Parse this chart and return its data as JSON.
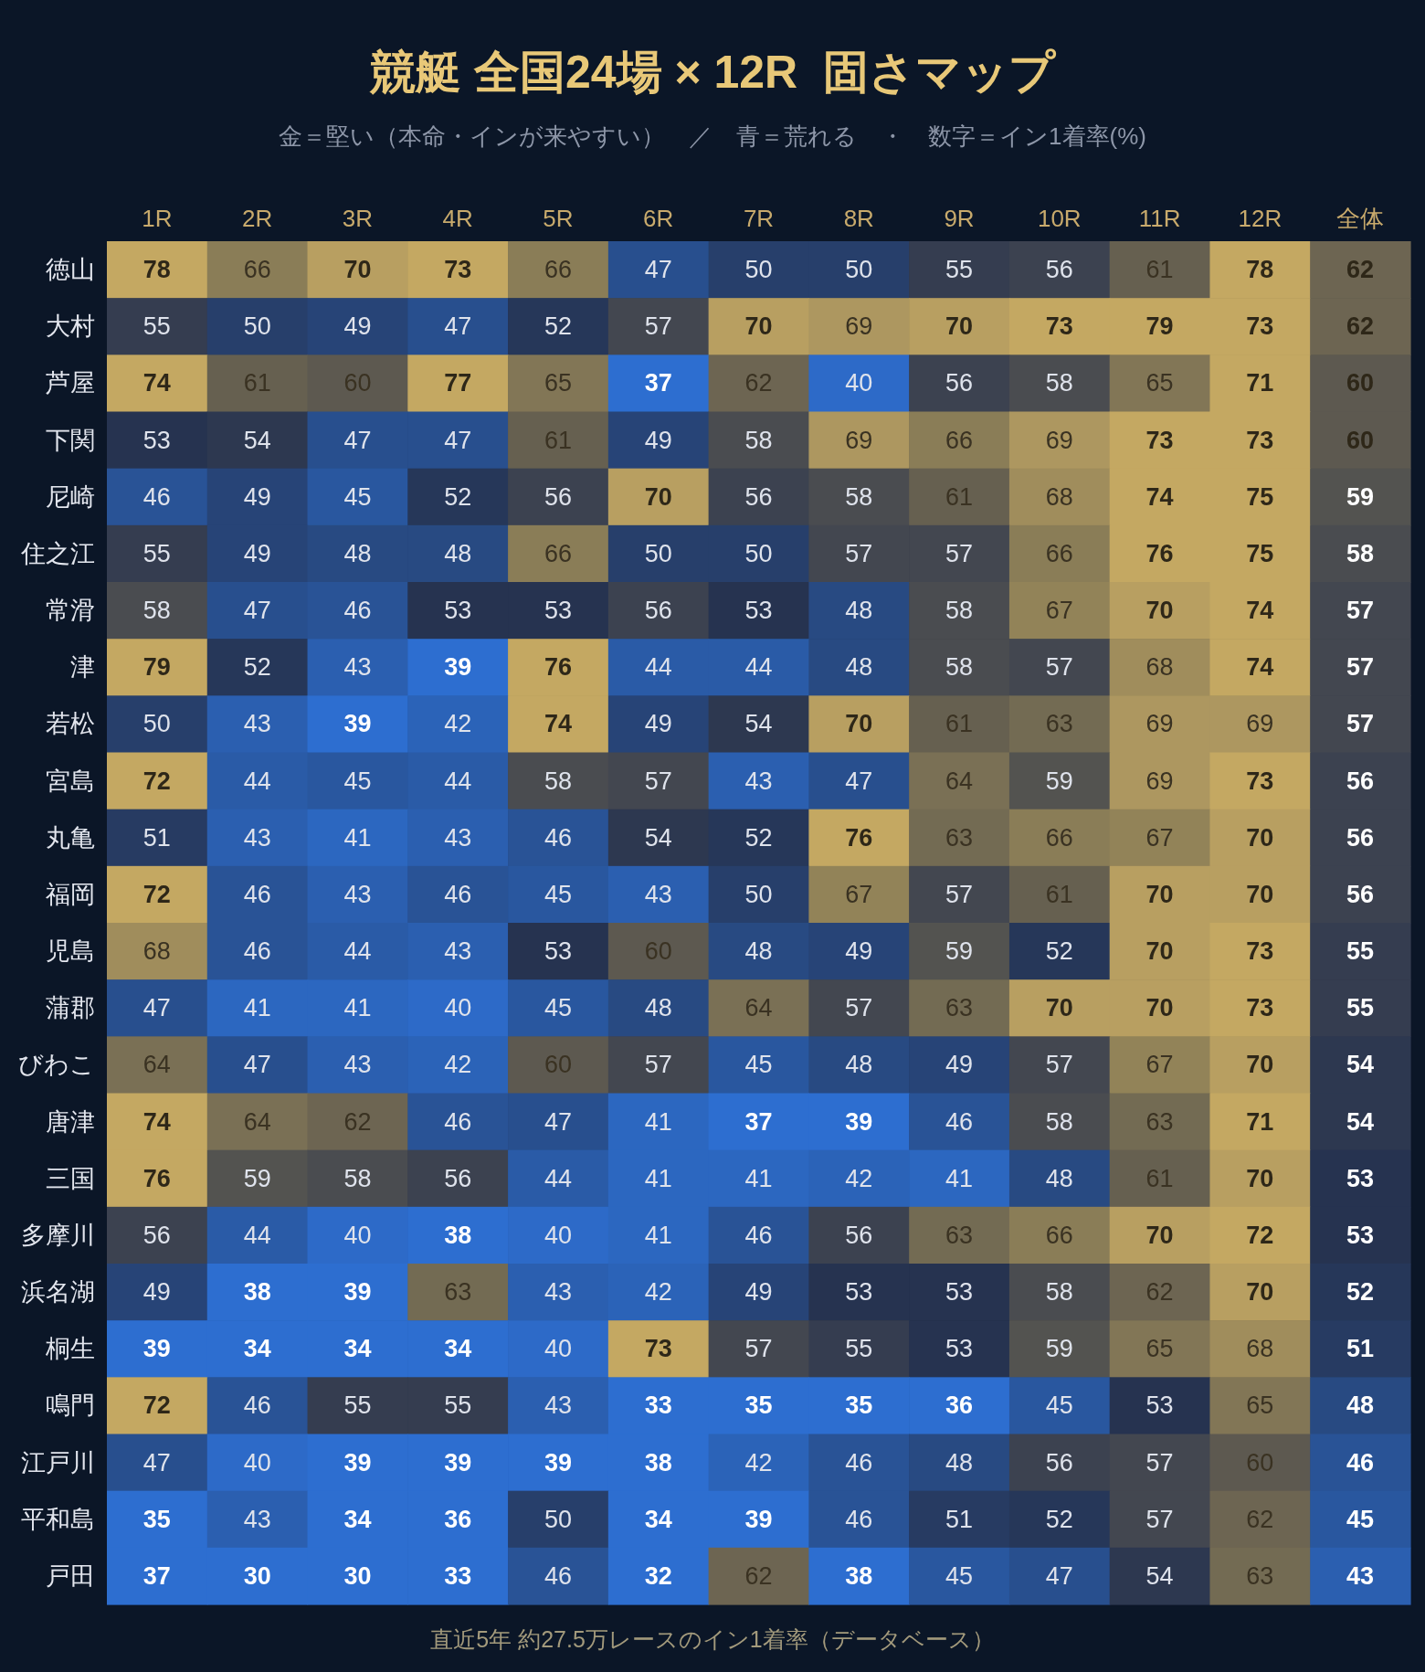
{
  "chart_data": {
    "type": "heatmap",
    "title": "競艇 全国24場 × 12R  固さマップ",
    "subtitle": "金＝堅い（本命・インが来やすい）　／　青＝荒れる　・　数字＝イン1着率(%)",
    "categories": [
      "1R",
      "2R",
      "3R",
      "4R",
      "5R",
      "6R",
      "7R",
      "8R",
      "9R",
      "10R",
      "11R",
      "12R",
      "全体"
    ],
    "y_categories": [
      "徳山",
      "大村",
      "芦屋",
      "下関",
      "尼崎",
      "住之江",
      "常滑",
      "津",
      "若松",
      "宮島",
      "丸亀",
      "福岡",
      "児島",
      "蒲郡",
      "びわこ",
      "唐津",
      "三国",
      "多摩川",
      "浜名湖",
      "桐生",
      "鳴門",
      "江戸川",
      "平和島",
      "戸田"
    ],
    "cells": [
      [
        78,
        66,
        70,
        73,
        66,
        47,
        50,
        50,
        55,
        56,
        61,
        78,
        62
      ],
      [
        55,
        50,
        49,
        47,
        52,
        57,
        70,
        69,
        70,
        73,
        79,
        73,
        62
      ],
      [
        74,
        61,
        60,
        77,
        65,
        37,
        62,
        40,
        56,
        58,
        65,
        71,
        60
      ],
      [
        53,
        54,
        47,
        47,
        61,
        49,
        58,
        69,
        66,
        69,
        73,
        73,
        60
      ],
      [
        46,
        49,
        45,
        52,
        56,
        70,
        56,
        58,
        61,
        68,
        74,
        75,
        59
      ],
      [
        55,
        49,
        48,
        48,
        66,
        50,
        50,
        57,
        57,
        66,
        76,
        75,
        58
      ],
      [
        58,
        47,
        46,
        53,
        53,
        56,
        53,
        48,
        58,
        67,
        70,
        74,
        57
      ],
      [
        79,
        52,
        43,
        39,
        76,
        44,
        44,
        48,
        58,
        57,
        68,
        74,
        57
      ],
      [
        50,
        43,
        39,
        42,
        74,
        49,
        54,
        70,
        61,
        63,
        69,
        69,
        57
      ],
      [
        72,
        44,
        45,
        44,
        58,
        57,
        43,
        47,
        64,
        59,
        69,
        73,
        56
      ],
      [
        51,
        43,
        41,
        43,
        46,
        54,
        52,
        76,
        63,
        66,
        67,
        70,
        56
      ],
      [
        72,
        46,
        43,
        46,
        45,
        43,
        50,
        67,
        57,
        61,
        70,
        70,
        56
      ],
      [
        68,
        46,
        44,
        43,
        53,
        60,
        48,
        49,
        59,
        52,
        70,
        73,
        55
      ],
      [
        47,
        41,
        41,
        40,
        45,
        48,
        64,
        57,
        63,
        70,
        70,
        73,
        55
      ],
      [
        64,
        47,
        43,
        42,
        60,
        57,
        45,
        48,
        49,
        57,
        67,
        70,
        54
      ],
      [
        74,
        64,
        62,
        46,
        47,
        41,
        37,
        39,
        46,
        58,
        63,
        71,
        54
      ],
      [
        76,
        59,
        58,
        56,
        44,
        41,
        41,
        42,
        41,
        48,
        61,
        70,
        53
      ],
      [
        56,
        44,
        40,
        38,
        40,
        41,
        46,
        56,
        63,
        66,
        70,
        72,
        53
      ],
      [
        49,
        38,
        39,
        63,
        43,
        42,
        49,
        53,
        53,
        58,
        62,
        70,
        52
      ],
      [
        39,
        34,
        34,
        34,
        40,
        73,
        57,
        55,
        53,
        59,
        65,
        68,
        51
      ],
      [
        72,
        46,
        55,
        55,
        43,
        33,
        35,
        35,
        36,
        45,
        53,
        65,
        48
      ],
      [
        47,
        40,
        39,
        39,
        39,
        38,
        42,
        46,
        48,
        56,
        57,
        60,
        46
      ],
      [
        35,
        43,
        34,
        36,
        50,
        34,
        39,
        46,
        51,
        52,
        57,
        62,
        45
      ],
      [
        37,
        30,
        30,
        33,
        46,
        32,
        62,
        38,
        45,
        47,
        54,
        63,
        43
      ]
    ],
    "data_labels": true,
    "annotations": [
      "直近5年 約27.5万レースのイン1着率（データベース）"
    ]
  }
}
